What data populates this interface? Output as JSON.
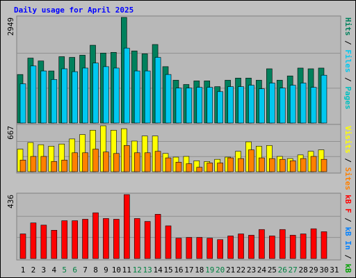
{
  "title": "Daily usage for April 2025",
  "chart_data": [
    {
      "type": "bar",
      "ylim": [
        0,
        2949
      ],
      "yticks": [
        2949
      ],
      "series": [
        {
          "name": "Hits",
          "color": "#00805c",
          "values": [
            1355,
            1813,
            1733,
            1454,
            1853,
            1833,
            1893,
            2172,
            1953,
            1973,
            2949,
            2013,
            1933,
            2192,
            1574,
            1195,
            1076,
            1176,
            1176,
            1016,
            1195,
            1255,
            1255,
            1195,
            1514,
            1195,
            1315,
            1534,
            1514,
            1534,
            null
          ]
        },
        {
          "name": "Files",
          "color": "#00c8f0",
          "values": [
            1096,
            1594,
            1454,
            1215,
            1514,
            1434,
            1534,
            1674,
            1574,
            1534,
            2092,
            1454,
            1454,
            1833,
            1355,
            976,
            976,
            996,
            996,
            877,
            1016,
            1016,
            1056,
            956,
            1116,
            976,
            1056,
            1116,
            996,
            1335,
            null
          ]
        }
      ],
      "extra_legend": [
        {
          "name": "Pages",
          "color": "#00c0c0"
        }
      ]
    },
    {
      "type": "bar",
      "ylim": [
        0,
        667
      ],
      "yticks": [
        667
      ],
      "series": [
        {
          "name": "Visits",
          "color": "#ffff00",
          "values": [
            328,
            424,
            392,
            371,
            402,
            476,
            540,
            603,
            667,
            603,
            625,
            445,
            519,
            519,
            265,
            212,
            222,
            159,
            148,
            180,
            212,
            296,
            434,
            371,
            381,
            222,
            191,
            244,
            296,
            318,
            null
          ]
        },
        {
          "name": "Sites",
          "color": "#ff8000",
          "values": [
            169,
            222,
            222,
            148,
            169,
            275,
            275,
            328,
            286,
            265,
            381,
            275,
            275,
            296,
            201,
            138,
            116,
            64,
            127,
            127,
            201,
            191,
            318,
            201,
            191,
            180,
            159,
            191,
            222,
            180,
            null
          ]
        }
      ]
    },
    {
      "type": "bar",
      "ylim": [
        0,
        436
      ],
      "yticks": [
        436
      ],
      "series": [
        {
          "name": "kB F",
          "color": "#ff0000",
          "values": [
            168,
            243,
            228,
            193,
            258,
            258,
            268,
            312,
            273,
            268,
            436,
            273,
            253,
            302,
            223,
            139,
            144,
            144,
            139,
            129,
            154,
            168,
            159,
            198,
            154,
            198,
            159,
            168,
            203,
            183,
            null
          ]
        }
      ],
      "extra_legend": [
        {
          "name": "kB In",
          "color": "#0080ff"
        },
        {
          "name": "kB Out",
          "color": "#00a000"
        }
      ],
      "categories": [
        "1",
        "2",
        "3",
        "4",
        "5",
        "6",
        "7",
        "8",
        "9",
        "10",
        "11",
        "12",
        "13",
        "14",
        "15",
        "16",
        "17",
        "18",
        "19",
        "20",
        "21",
        "22",
        "23",
        "24",
        "25",
        "26",
        "27",
        "28",
        "29",
        "30",
        "31"
      ],
      "label_colors": [
        "#000000",
        "#000000",
        "#000000",
        "#000000",
        "#008040",
        "#008040",
        "#000000",
        "#000000",
        "#000000",
        "#000000",
        "#000000",
        "#008040",
        "#008040",
        "#000000",
        "#000000",
        "#000000",
        "#000000",
        "#000000",
        "#008040",
        "#008040",
        "#000000",
        "#000000",
        "#000000",
        "#000000",
        "#000000",
        "#008040",
        "#008040",
        "#000000",
        "#000000",
        "#000000",
        "#000000"
      ]
    }
  ]
}
